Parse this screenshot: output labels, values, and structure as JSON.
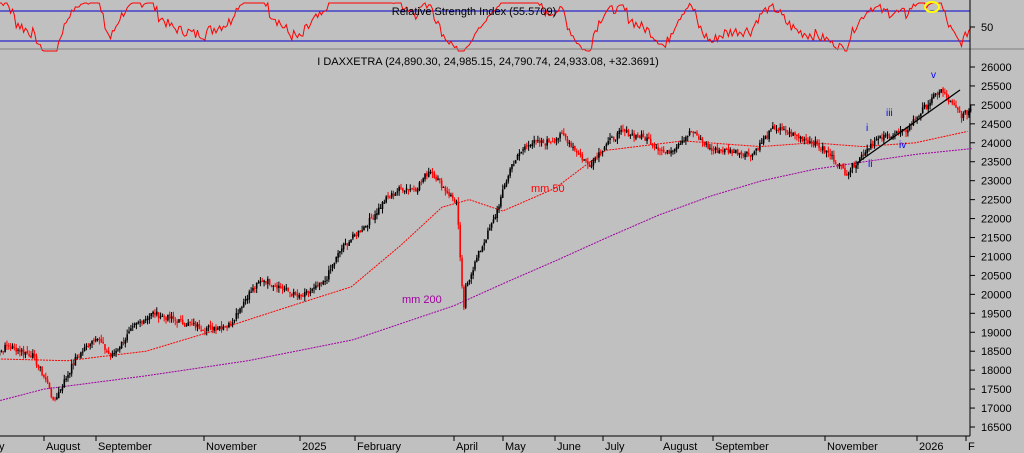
{
  "colors": {
    "background": "#c0c0c0",
    "rsi_line": "#ff0000",
    "rsi_bands": "#0000cc",
    "bull_candle": "#000000",
    "bear_candle": "#ff0000",
    "mm50": "#ff0000",
    "mm200": "#a000a0",
    "wave_labels": "#0000ff",
    "trendline": "#000000",
    "highlight_circle": "#ffff00"
  },
  "chart_data": {
    "type": "candlestick",
    "title": "I DAXXETRA (24,890.30, 24,985.15, 24,790.74, 24,933.08, +32.3691)",
    "ohlc_last": {
      "open": 24890.3,
      "high": 24985.15,
      "low": 24790.74,
      "close": 24933.08,
      "change": 32.3691
    },
    "y_axis": {
      "ticks": [
        26000,
        25500,
        25000,
        24500,
        24000,
        23500,
        23000,
        22500,
        22000,
        21500,
        21000,
        20500,
        20000,
        19500,
        19000,
        18500,
        18000,
        17500,
        17000,
        16500
      ],
      "ylim": [
        16300,
        26300
      ]
    },
    "x_axis": {
      "labels": [
        "July",
        "August",
        "September",
        "November",
        "2025",
        "February",
        "April",
        "May",
        "June",
        "July",
        "August",
        "September",
        "November",
        "2026",
        "F"
      ]
    },
    "price_path": [
      [
        "2024-07-01",
        18300
      ],
      [
        "2024-07-10",
        18650
      ],
      [
        "2024-07-25",
        18400
      ],
      [
        "2024-08-05",
        17500
      ],
      [
        "2024-08-06",
        17100
      ],
      [
        "2024-08-20",
        18300
      ],
      [
        "2024-09-01",
        18900
      ],
      [
        "2024-09-10",
        18350
      ],
      [
        "2024-09-25",
        19200
      ],
      [
        "2024-10-05",
        19500
      ],
      [
        "2024-10-20",
        19300
      ],
      [
        "2024-11-05",
        19100
      ],
      [
        "2024-11-20",
        19200
      ],
      [
        "2024-12-01",
        20000
      ],
      [
        "2024-12-10",
        20400
      ],
      [
        "2024-12-20",
        20200
      ],
      [
        "2025-01-01",
        19900
      ],
      [
        "2025-01-15",
        20300
      ],
      [
        "2025-01-25",
        21200
      ],
      [
        "2025-02-10",
        21900
      ],
      [
        "2025-02-20",
        22500
      ],
      [
        "2025-03-01",
        22800
      ],
      [
        "2025-03-10",
        22800
      ],
      [
        "2025-03-18",
        23300
      ],
      [
        "2025-03-28",
        22700
      ],
      [
        "2025-04-03",
        22400
      ],
      [
        "2025-04-04",
        21300
      ],
      [
        "2025-04-07",
        19500
      ],
      [
        "2025-04-08",
        20200
      ],
      [
        "2025-04-15",
        21000
      ],
      [
        "2025-04-25",
        22000
      ],
      [
        "2025-05-05",
        23400
      ],
      [
        "2025-05-15",
        24000
      ],
      [
        "2025-05-25",
        24000
      ],
      [
        "2025-06-05",
        24200
      ],
      [
        "2025-06-20",
        23400
      ],
      [
        "2025-07-01",
        24000
      ],
      [
        "2025-07-10",
        24300
      ],
      [
        "2025-07-25",
        24100
      ],
      [
        "2025-08-05",
        23700
      ],
      [
        "2025-08-20",
        24300
      ],
      [
        "2025-09-01",
        23800
      ],
      [
        "2025-09-10",
        23800
      ],
      [
        "2025-09-25",
        23700
      ],
      [
        "2025-10-08",
        24400
      ],
      [
        "2025-10-20",
        24200
      ],
      [
        "2025-11-01",
        24000
      ],
      [
        "2025-11-10",
        23700
      ],
      [
        "2025-11-20",
        23200
      ],
      [
        "2025-11-28",
        23600
      ],
      [
        "2025-12-05",
        24000
      ],
      [
        "2025-12-15",
        24200
      ],
      [
        "2025-12-25",
        24300
      ],
      [
        "2026-01-05",
        24900
      ],
      [
        "2026-01-15",
        25400
      ],
      [
        "2026-01-20",
        25100
      ],
      [
        "2026-01-28",
        24700
      ],
      [
        "2026-02-03",
        24933
      ]
    ],
    "ma_50": {
      "name": "mm 50",
      "points": [
        [
          "2024-07-01",
          18300
        ],
        [
          "2024-08-15",
          18250
        ],
        [
          "2024-10-01",
          18500
        ],
        [
          "2024-11-15",
          19100
        ],
        [
          "2024-12-20",
          19600
        ],
        [
          "2025-01-31",
          20200
        ],
        [
          "2025-03-01",
          21300
        ],
        [
          "2025-03-25",
          22300
        ],
        [
          "2025-04-10",
          22500
        ],
        [
          "2025-04-30",
          22200
        ],
        [
          "2025-05-31",
          22800
        ],
        [
          "2025-06-30",
          23800
        ],
        [
          "2025-08-15",
          24050
        ],
        [
          "2025-09-30",
          23900
        ],
        [
          "2025-10-31",
          24000
        ],
        [
          "2025-11-30",
          23900
        ],
        [
          "2025-12-31",
          24000
        ],
        [
          "2026-01-31",
          24300
        ]
      ]
    },
    "ma_200": {
      "name": "mm 200",
      "points": [
        [
          "2024-06-15",
          16960
        ],
        [
          "2024-08-01",
          17500
        ],
        [
          "2024-10-01",
          17850
        ],
        [
          "2024-12-01",
          18250
        ],
        [
          "2025-02-01",
          18800
        ],
        [
          "2025-04-01",
          19700
        ],
        [
          "2025-05-01",
          20300
        ],
        [
          "2025-06-01",
          20900
        ],
        [
          "2025-07-01",
          21500
        ],
        [
          "2025-08-01",
          22100
        ],
        [
          "2025-09-01",
          22600
        ],
        [
          "2025-10-01",
          23000
        ],
        [
          "2025-11-01",
          23300
        ],
        [
          "2025-12-01",
          23500
        ],
        [
          "2026-01-01",
          23700
        ],
        [
          "2026-02-03",
          23850
        ]
      ]
    },
    "annotations": [
      "mm 50",
      "mm 200",
      "i",
      "ii",
      "iii",
      "iv",
      "v"
    ],
    "rsi": {
      "title": "Relative Strength Index (55.5709)",
      "value": 55.5709,
      "ticks": [
        50
      ],
      "bands": [
        30,
        70
      ]
    }
  }
}
